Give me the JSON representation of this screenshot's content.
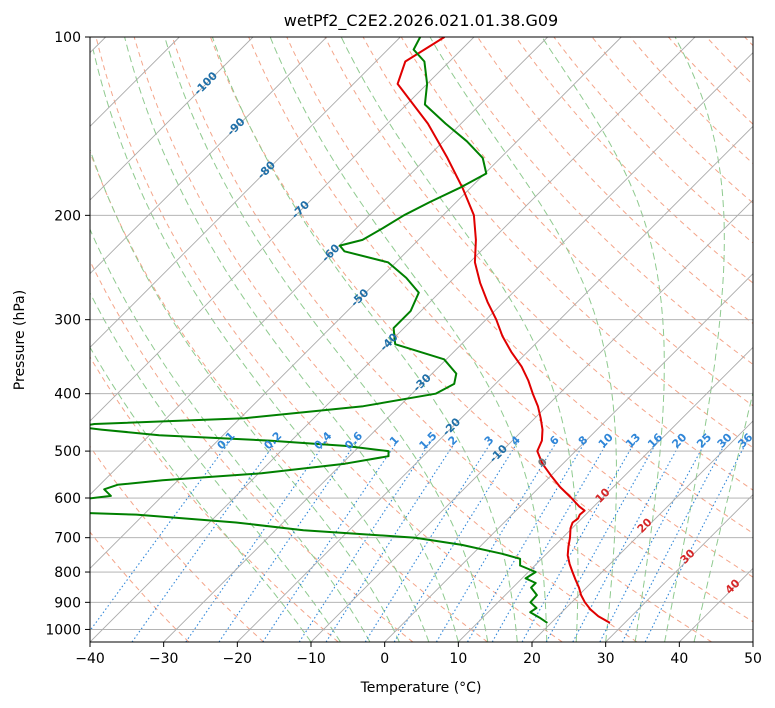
{
  "chart_data": {
    "type": "line",
    "subtype": "skew-t log-p diagram",
    "title": "wetPf2_C2E2.2026.021.01.38.G09",
    "xlabel": "Temperature (°C)",
    "ylabel": "Pressure (hPa)",
    "xlim": [
      -40,
      50
    ],
    "ylim": [
      1050,
      100
    ],
    "y_scale": "log",
    "x_ticks": [
      "−40",
      "−30",
      "−20",
      "−10",
      "0",
      "10",
      "20",
      "30",
      "40",
      "50"
    ],
    "y_ticks": [
      "100",
      "200",
      "300",
      "400",
      "500",
      "600",
      "700",
      "800",
      "900",
      "1000"
    ],
    "grid": true,
    "series": [
      {
        "role": "temperature",
        "color": "#e00000",
        "pressure": [
          975,
          950,
          925,
          900,
          875,
          850,
          825,
          800,
          775,
          750,
          725,
          700,
          675,
          660,
          650,
          640,
          630,
          620,
          600,
          575,
          550,
          525,
          500,
          480,
          460,
          440,
          420,
          400,
          380,
          360,
          340,
          320,
          300,
          280,
          260,
          240,
          220,
          200,
          180,
          160,
          140,
          120,
          110,
          100
        ],
        "temperature": [
          28.0,
          25.5,
          23.5,
          21.8,
          20.3,
          19.0,
          17.5,
          16.0,
          14.5,
          13.1,
          12.0,
          11.0,
          9.8,
          9.3,
          9.5,
          9.2,
          9.3,
          8.0,
          5.8,
          2.8,
          0.0,
          -2.8,
          -5.2,
          -6.0,
          -7.4,
          -9.2,
          -11.2,
          -13.6,
          -16.0,
          -18.8,
          -22.2,
          -25.5,
          -28.6,
          -32.2,
          -35.8,
          -39.3,
          -42.2,
          -45.8,
          -51.0,
          -57.2,
          -64.5,
          -74.0,
          -76.0,
          -74.0
        ]
      },
      {
        "role": "dewpoint",
        "color": "#008000",
        "pressure": [
          975,
          955,
          935,
          920,
          900,
          875,
          850,
          835,
          820,
          800,
          780,
          760,
          745,
          720,
          700,
          680,
          660,
          640,
          630,
          625,
          620,
          610,
          595,
          580,
          570,
          560,
          545,
          525,
          510,
          500,
          490,
          480,
          470,
          460,
          455,
          450,
          440,
          420,
          400,
          385,
          370,
          350,
          330,
          310,
          290,
          270,
          255,
          240,
          230,
          225,
          220,
          210,
          200,
          190,
          180,
          170,
          160,
          150,
          140,
          130,
          120,
          110,
          105,
          100
        ],
        "dewpoint": [
          19.5,
          17.7,
          15.7,
          16.0,
          14.4,
          14.3,
          12.5,
          12.5,
          10.5,
          11.0,
          8.0,
          7.1,
          3.9,
          -2.7,
          -10.0,
          -26.2,
          -36.4,
          -51.0,
          -69.3,
          -75.1,
          -64.0,
          -63.5,
          -57.0,
          -58.8,
          -57.6,
          -52.1,
          -39.6,
          -29.6,
          -24.7,
          -25.4,
          -32.0,
          -43.0,
          -58.7,
          -67.3,
          -70.9,
          -69.0,
          -49.4,
          -34.9,
          -26.8,
          -25.6,
          -26.7,
          -30.3,
          -39.0,
          -41.4,
          -41.4,
          -42.8,
          -46.5,
          -51.1,
          -58.5,
          -59.9,
          -57.6,
          -56.4,
          -55.3,
          -53.6,
          -51.5,
          -49.8,
          -52.4,
          -56.8,
          -62.1,
          -67.5,
          -70.0,
          -73.4,
          -76.5,
          -77.3
        ]
      }
    ],
    "dry_adiabat_labels": [
      "-100",
      "-90",
      "-80",
      "-70",
      "-60",
      "-50",
      "-40",
      "-30",
      "-20",
      "-10"
    ],
    "moist_adiabat_labels": [
      "0",
      "10",
      "20",
      "30",
      "40"
    ],
    "mixing_ratio_labels": [
      "0.1",
      "0.2",
      "0.4",
      "0.6",
      "1",
      "1.5",
      "2",
      "3",
      "4",
      "6",
      "8",
      "10",
      "13",
      "16",
      "20",
      "25",
      "30",
      "36"
    ],
    "colors": {
      "temperature": "#e00000",
      "dewpoint": "#008000",
      "isotherm": "#aaaaaa",
      "isobar": "#aaaaaa",
      "dry_adiabat": "#f4a58a",
      "dry_adiabat_label": "#1f6fa8",
      "moist_adiabat": "#8fca8f",
      "moist_adiabat_label": "#d62728",
      "mixing_ratio": "#2f86d8",
      "freezing_label": "#777777"
    }
  }
}
